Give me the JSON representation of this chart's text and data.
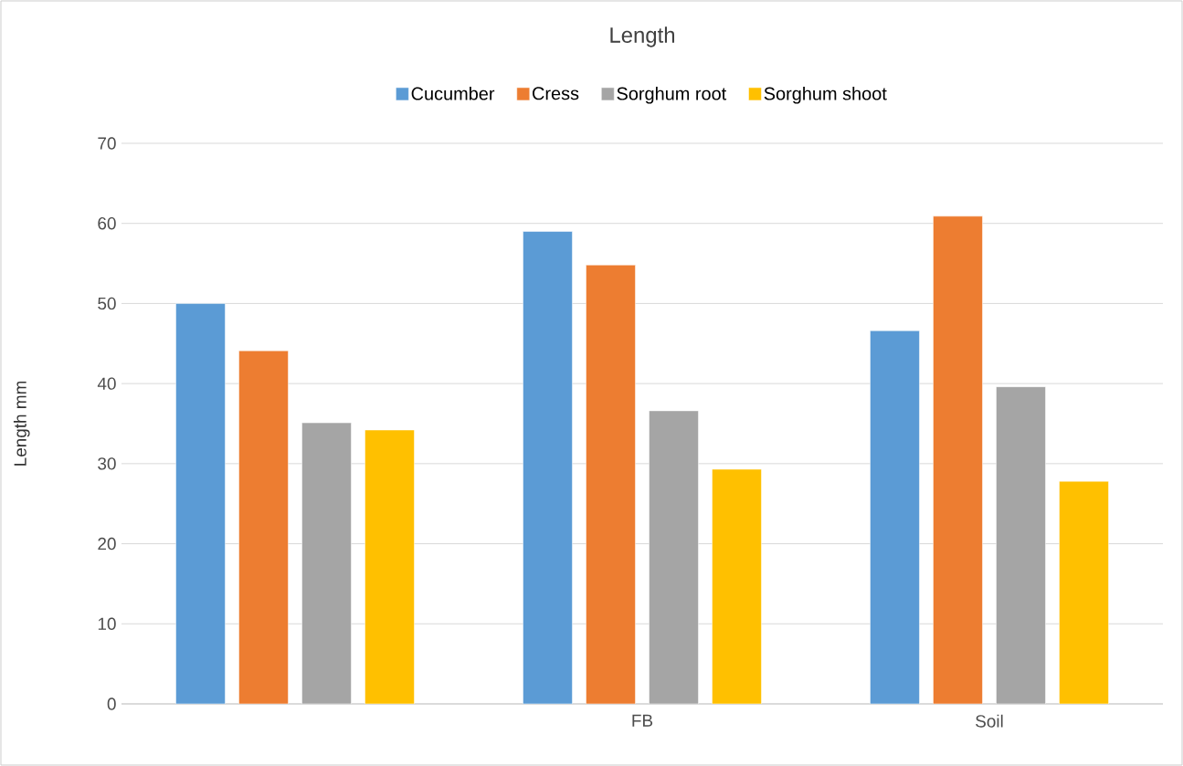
{
  "chart_data": {
    "type": "bar",
    "title": "Length",
    "ylabel": "Length mm",
    "categories": [
      null,
      "FB",
      "Soil"
    ],
    "series": [
      {
        "name": "Cucumber",
        "color": "#5b9bd5",
        "values": [
          50.0,
          59.0,
          46.6
        ]
      },
      {
        "name": "Cress",
        "color": "#ed7d31",
        "values": [
          44.1,
          54.8,
          60.9
        ]
      },
      {
        "name": "Sorghum root",
        "color": "#a5a5a5",
        "values": [
          35.1,
          36.6,
          39.6
        ]
      },
      {
        "name": "Sorghum shoot",
        "color": "#ffc000",
        "values": [
          34.2,
          29.3,
          27.8
        ]
      }
    ],
    "ylim": [
      0,
      70
    ],
    "yticks": [
      0,
      10,
      20,
      30,
      40,
      50,
      60,
      70
    ],
    "grid": "y",
    "legend": "top"
  }
}
